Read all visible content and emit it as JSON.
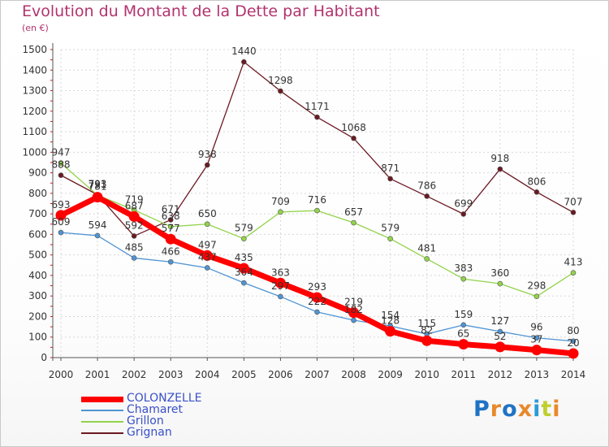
{
  "title": "Evolution du Montant de la Dette par Habitant",
  "subtitle": "(en €)",
  "logo": {
    "text": "Proxiti",
    "colors": [
      "#1f73c4",
      "#e8892b",
      "#1f73c4",
      "#e8892b",
      "#2a9bd6",
      "#c0cf2e",
      "#e8892b"
    ]
  },
  "chart_data": {
    "type": "line",
    "title": "Evolution du Montant de la Dette par Habitant",
    "ylabel": "(en €)",
    "xlabel": "",
    "x": [
      "2000",
      "2001",
      "2002",
      "2003",
      "2004",
      "2005",
      "2006",
      "2007",
      "2008",
      "2009",
      "2010",
      "2011",
      "2012",
      "2013",
      "2014"
    ],
    "ylim": [
      0,
      1500
    ],
    "yticks": [
      0,
      100,
      200,
      300,
      400,
      500,
      600,
      700,
      800,
      900,
      1000,
      1100,
      1200,
      1300,
      1400,
      1500
    ],
    "grid": true,
    "legend_position": "bottom-left",
    "series": [
      {
        "name": "COLONZELLE",
        "color": "#ff0000",
        "values": [
          693,
          781,
          687,
          577,
          497,
          435,
          363,
          293,
          219,
          128,
          82,
          65,
          52,
          37,
          20
        ]
      },
      {
        "name": "Chamaret",
        "color": "#4f94d3",
        "values": [
          609,
          594,
          485,
          466,
          437,
          364,
          297,
          222,
          182,
          154,
          115,
          159,
          127,
          96,
          80
        ]
      },
      {
        "name": "Grillon",
        "color": "#92d34b",
        "values": [
          947,
          791,
          719,
          638,
          650,
          579,
          709,
          716,
          657,
          579,
          481,
          383,
          360,
          298,
          413
        ]
      },
      {
        "name": "Grignan",
        "color": "#6b1a22",
        "values": [
          888,
          793,
          592,
          671,
          938,
          1440,
          1298,
          1171,
          1068,
          871,
          786,
          699,
          918,
          806,
          707
        ]
      }
    ]
  }
}
